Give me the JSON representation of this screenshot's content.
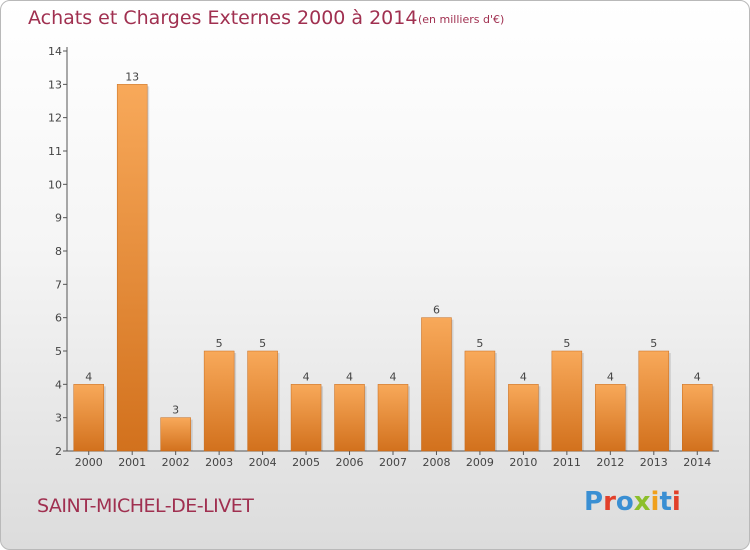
{
  "header": {
    "title": "Achats et Charges Externes 2000 à 2014",
    "unit": "(en milliers d'€)"
  },
  "footer": {
    "commune": "SAINT-MICHEL-DE-LIVET",
    "brand": "Proxiti"
  },
  "colors": {
    "title": "#a03050",
    "bar_light": "#f8a95a",
    "bar_dark": "#d2711d",
    "brand_letters": [
      "#3a8fd3",
      "#e2402a",
      "#3a8fd3",
      "#8cbf2b",
      "#f0a01c",
      "#3a8fd3",
      "#e2402a"
    ]
  },
  "chart_data": {
    "type": "bar",
    "title": "Achats et Charges Externes 2000 à 2014",
    "categories": [
      "2000",
      "2001",
      "2002",
      "2003",
      "2004",
      "2005",
      "2006",
      "2007",
      "2008",
      "2009",
      "2010",
      "2011",
      "2012",
      "2013",
      "2014"
    ],
    "values": [
      4,
      13,
      3,
      5,
      5,
      4,
      4,
      4,
      6,
      5,
      4,
      5,
      4,
      5,
      4
    ],
    "ylim": [
      2,
      14
    ],
    "yticks": [
      2,
      3,
      4,
      5,
      6,
      7,
      8,
      9,
      10,
      11,
      12,
      13,
      14
    ],
    "grid": false,
    "data_labels": true
  }
}
